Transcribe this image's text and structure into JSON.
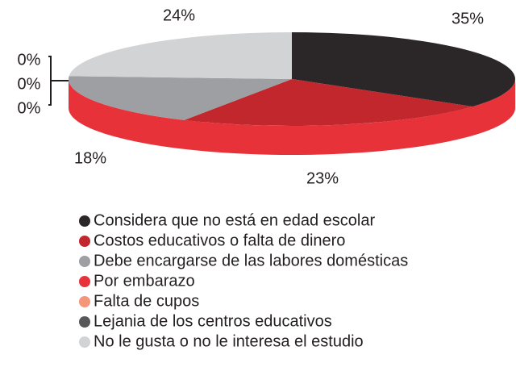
{
  "chart_data": {
    "type": "pie",
    "categories": [
      "Considera que no está en edad escolar",
      "Costos educativos o falta de dinero",
      "Debe encargarse de las labores domésticas",
      "Por embarazo",
      "Falta de cupos",
      "Lejania de los centros educativos",
      "No le gusta o no le interesa el estudio"
    ],
    "values": [
      35,
      23,
      18,
      0,
      0,
      0,
      24
    ],
    "value_labels": [
      "35%",
      "23%",
      "18%",
      "0%",
      "0%",
      "0%",
      "24%"
    ],
    "colors": [
      "#2b2728",
      "#c1272d",
      "#9d9fa2",
      "#e8323a",
      "#f4967a",
      "#58585a",
      "#d1d3d4"
    ]
  }
}
